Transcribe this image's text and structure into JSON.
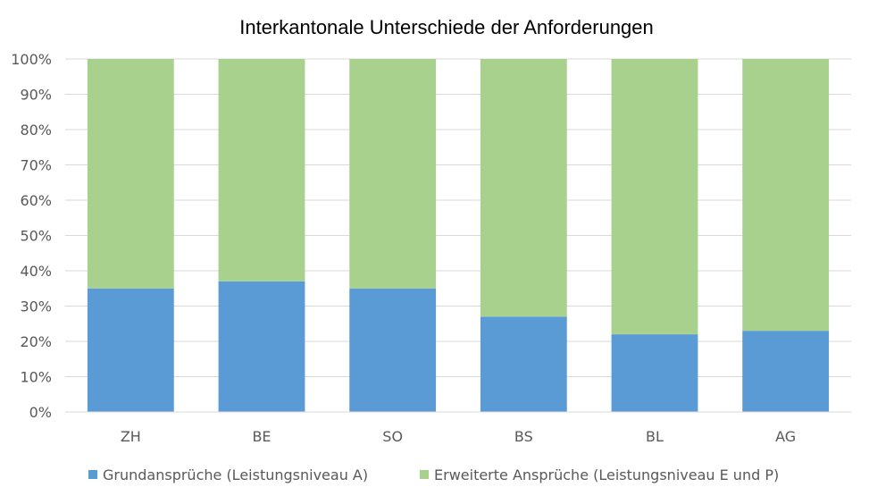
{
  "chart_data": {
    "type": "bar",
    "stacked": true,
    "title": "Interkantonale Unterschiede der Anforderungen",
    "categories": [
      "ZH",
      "BE",
      "SO",
      "BS",
      "BL",
      "AG"
    ],
    "series": [
      {
        "name": "Grundansprüche (Leistungsniveau A)",
        "color": "#5B9BD5",
        "values": [
          35,
          37,
          35,
          27,
          22,
          23
        ]
      },
      {
        "name": "Erweiterte Ansprüche (Leistungsniveau E und P)",
        "color": "#A9D18E",
        "values": [
          65,
          63,
          65,
          73,
          78,
          77
        ]
      }
    ],
    "ylim": [
      0,
      100
    ],
    "yticks": [
      "0%",
      "10%",
      "20%",
      "30%",
      "40%",
      "50%",
      "60%",
      "70%",
      "80%",
      "90%",
      "100%"
    ],
    "grid": true,
    "legend_position": "bottom"
  }
}
